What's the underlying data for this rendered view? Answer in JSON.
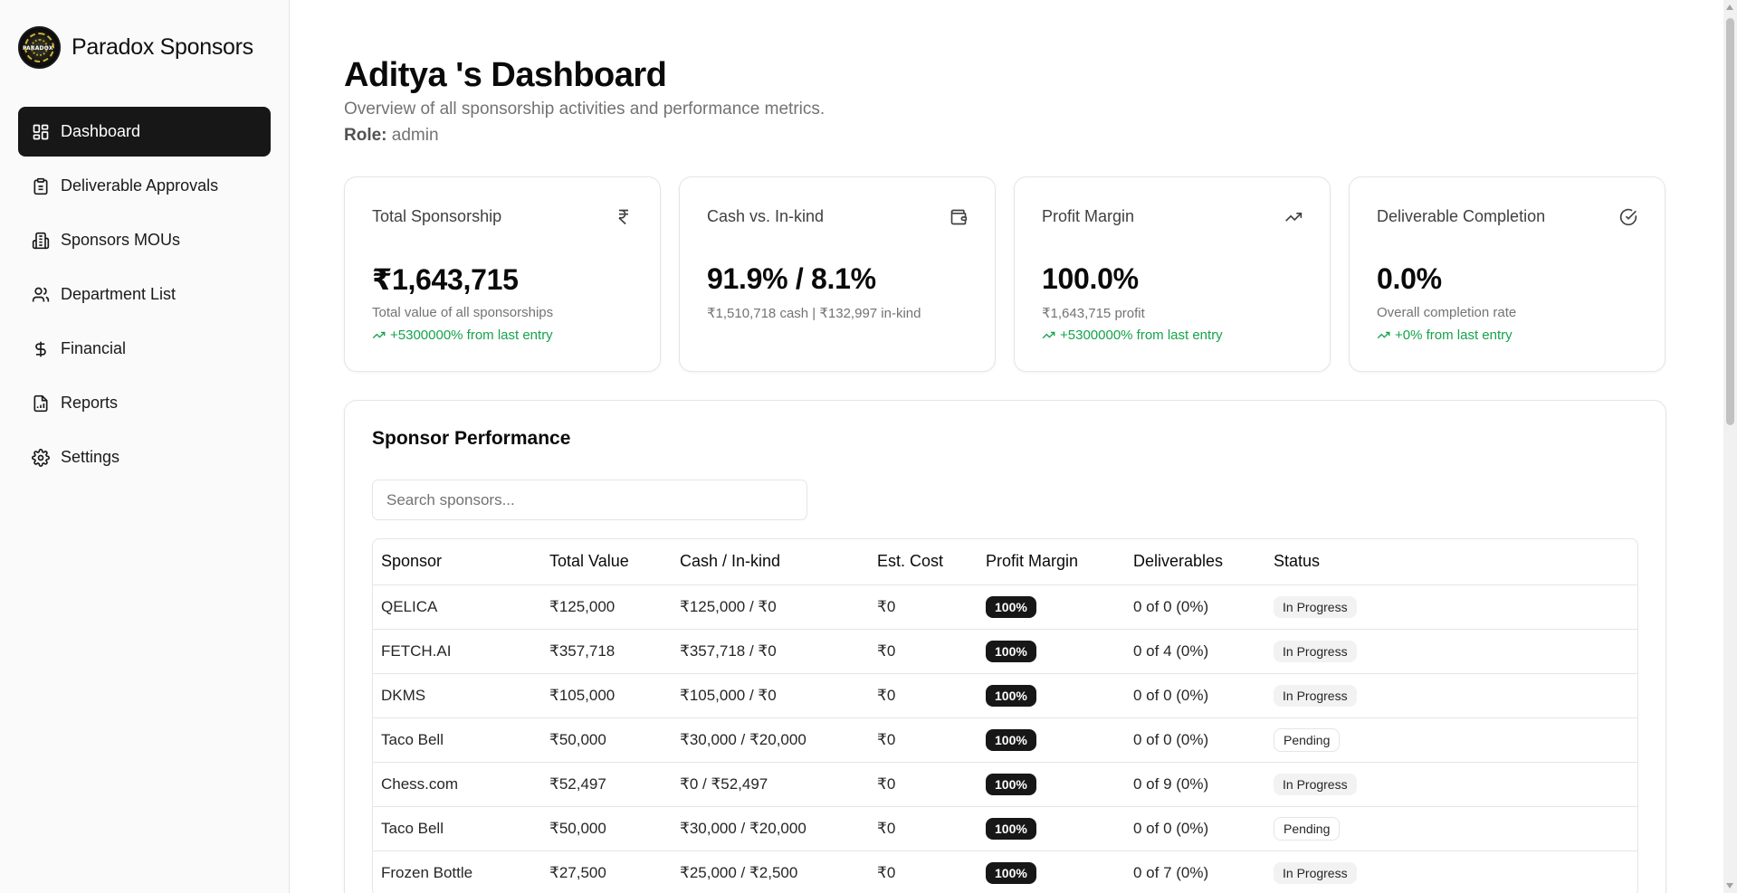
{
  "brand": {
    "name": "Paradox Sponsors",
    "logo_text": "PARADOX"
  },
  "sidebar": {
    "items": [
      {
        "label": "Dashboard",
        "icon": "dashboard-grid-icon",
        "active": true
      },
      {
        "label": "Deliverable Approvals",
        "icon": "clipboard-icon",
        "active": false
      },
      {
        "label": "Sponsors MOUs",
        "icon": "building-icon",
        "active": false
      },
      {
        "label": "Department List",
        "icon": "users-icon",
        "active": false
      },
      {
        "label": "Financial",
        "icon": "dollar-icon",
        "active": false
      },
      {
        "label": "Reports",
        "icon": "report-icon",
        "active": false
      },
      {
        "label": "Settings",
        "icon": "gear-icon",
        "active": false
      }
    ]
  },
  "header": {
    "title": "Aditya 's Dashboard",
    "subtitle": "Overview of all sponsorship activities and performance metrics.",
    "role_label": "Role:",
    "role_value": "admin"
  },
  "cards": [
    {
      "title": "Total Sponsorship",
      "icon": "rupee-icon",
      "value": "₹1,643,715",
      "desc": "Total value of all sponsorships",
      "trend": "+5300000% from last entry"
    },
    {
      "title": "Cash vs. In-kind",
      "icon": "wallet-icon",
      "value": "91.9% / 8.1%",
      "desc": "₹1,510,718 cash | ₹132,997 in-kind",
      "trend": ""
    },
    {
      "title": "Profit Margin",
      "icon": "trending-up-icon",
      "value": "100.0%",
      "desc": "₹1,643,715 profit",
      "trend": "+5300000% from last entry"
    },
    {
      "title": "Deliverable Completion",
      "icon": "check-circle-icon",
      "value": "0.0%",
      "desc": "Overall completion rate",
      "trend": "+0% from last entry"
    }
  ],
  "performance": {
    "title": "Sponsor Performance",
    "search_placeholder": "Search sponsors...",
    "columns": [
      "Sponsor",
      "Total Value",
      "Cash / In-kind",
      "Est. Cost",
      "Profit Margin",
      "Deliverables",
      "Status"
    ],
    "rows": [
      {
        "sponsor": "QELICA",
        "total": "₹125,000",
        "split": "₹125,000 / ₹0",
        "cost": "₹0",
        "margin": "100%",
        "deliverables": "0 of 0 (0%)",
        "status": "In Progress"
      },
      {
        "sponsor": "FETCH.AI",
        "total": "₹357,718",
        "split": "₹357,718 / ₹0",
        "cost": "₹0",
        "margin": "100%",
        "deliverables": "0 of 4 (0%)",
        "status": "In Progress"
      },
      {
        "sponsor": "DKMS",
        "total": "₹105,000",
        "split": "₹105,000 / ₹0",
        "cost": "₹0",
        "margin": "100%",
        "deliverables": "0 of 0 (0%)",
        "status": "In Progress"
      },
      {
        "sponsor": "Taco Bell",
        "total": "₹50,000",
        "split": "₹30,000 / ₹20,000",
        "cost": "₹0",
        "margin": "100%",
        "deliverables": "0 of 0 (0%)",
        "status": "Pending"
      },
      {
        "sponsor": "Chess.com",
        "total": "₹52,497",
        "split": "₹0 / ₹52,497",
        "cost": "₹0",
        "margin": "100%",
        "deliverables": "0 of 9 (0%)",
        "status": "In Progress"
      },
      {
        "sponsor": "Taco Bell",
        "total": "₹50,000",
        "split": "₹30,000 / ₹20,000",
        "cost": "₹0",
        "margin": "100%",
        "deliverables": "0 of 0 (0%)",
        "status": "Pending"
      },
      {
        "sponsor": "Frozen Bottle",
        "total": "₹27,500",
        "split": "₹25,000 / ₹2,500",
        "cost": "₹0",
        "margin": "100%",
        "deliverables": "0 of 7 (0%)",
        "status": "In Progress"
      }
    ]
  },
  "colors": {
    "accent": "#171717",
    "trend_positive": "#16a34a",
    "muted": "#737373"
  }
}
